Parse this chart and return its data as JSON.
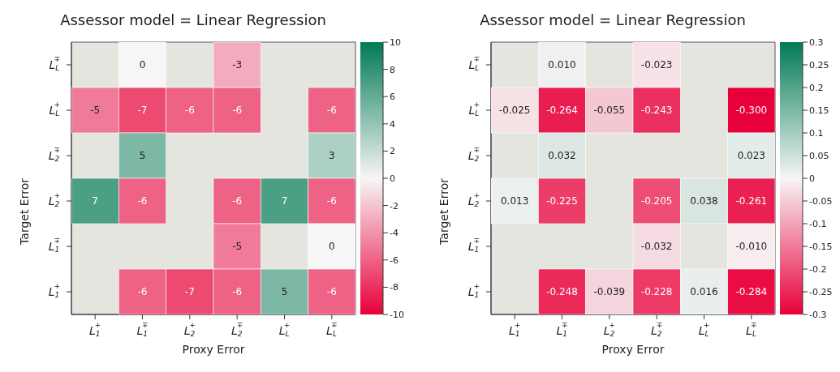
{
  "chart_data": [
    {
      "type": "heatmap",
      "title": "Assessor model = Linear Regression",
      "xlabel": "Proxy Error",
      "ylabel": "Target Error",
      "categories": [
        "L$_{1}$$^{+}$",
        "L$_{1}$$^{∓}$",
        "L$_{2}$$^{+}$",
        "L$_{2}$$^{∓}$",
        "L$_{L}$$^{+}$",
        "L$_{L}$$^{∓}$"
      ],
      "y_categories": [
        "L$_{L}$$^{∓}$",
        "L$_{L}$$^{+}$",
        "L$_{2}$$^{∓}$",
        "L$_{2}$$^{+}$",
        "L$_{1}$$^{∓}$",
        "L$_{1}$$^{+}$"
      ],
      "cells": [
        [
          null,
          0,
          null,
          -3,
          null,
          null
        ],
        [
          -5,
          -7,
          -6,
          -6,
          null,
          -6
        ],
        [
          null,
          5,
          null,
          null,
          null,
          3
        ],
        [
          7,
          -6,
          null,
          -6,
          7,
          -6
        ],
        [
          null,
          null,
          null,
          -5,
          null,
          0
        ],
        [
          null,
          -6,
          -7,
          -6,
          5,
          -6
        ]
      ],
      "data_labels": true,
      "clim": [
        -10,
        10
      ],
      "cticks": [
        -10,
        -8,
        -6,
        -4,
        -2,
        0,
        2,
        4,
        6,
        8,
        10
      ]
    },
    {
      "type": "heatmap",
      "title": "Assessor model = Linear Regression",
      "xlabel": "Proxy Error",
      "ylabel": "Target Error",
      "categories": [
        "L$_{1}$$^{+}$",
        "L$_{1}$$^{∓}$",
        "L$_{2}$$^{+}$",
        "L$_{2}$$^{∓}$",
        "L$_{L}$$^{+}$",
        "L$_{L}$$^{∓}$"
      ],
      "y_categories": [
        "L$_{L}$$^{∓}$",
        "L$_{L}$$^{+}$",
        "L$_{2}$$^{∓}$",
        "L$_{2}$$^{+}$",
        "L$_{1}$$^{∓}$",
        "L$_{1}$$^{+}$"
      ],
      "cells": [
        [
          null,
          0.01,
          null,
          -0.023,
          null,
          null
        ],
        [
          -0.025,
          -0.264,
          -0.055,
          -0.243,
          null,
          -0.3
        ],
        [
          null,
          0.032,
          null,
          null,
          null,
          0.023
        ],
        [
          0.013,
          -0.225,
          null,
          -0.205,
          0.038,
          -0.261
        ],
        [
          null,
          null,
          null,
          -0.032,
          null,
          -0.01
        ],
        [
          null,
          -0.248,
          -0.039,
          -0.228,
          0.016,
          -0.284
        ]
      ],
      "cell_labels": [
        [
          null,
          "0.010",
          null,
          "-0.023",
          null,
          null
        ],
        [
          "-0.025",
          "-0.264",
          "-0.055",
          "-0.243",
          null,
          "-0.300"
        ],
        [
          null,
          "0.032",
          null,
          null,
          null,
          "0.023"
        ],
        [
          "0.013",
          "-0.225",
          null,
          "-0.205",
          "0.038",
          "-0.261"
        ],
        [
          null,
          null,
          null,
          "-0.032",
          null,
          "-0.010"
        ],
        [
          null,
          "-0.248",
          "-0.039",
          "-0.228",
          "0.016",
          "-0.284"
        ]
      ],
      "clim": [
        -0.3,
        0.3
      ],
      "cticks": [
        -0.3,
        -0.25,
        -0.2,
        -0.15,
        -0.1,
        -0.05,
        0,
        0.05,
        0.1,
        0.15,
        0.2,
        0.25,
        0.3
      ]
    }
  ]
}
